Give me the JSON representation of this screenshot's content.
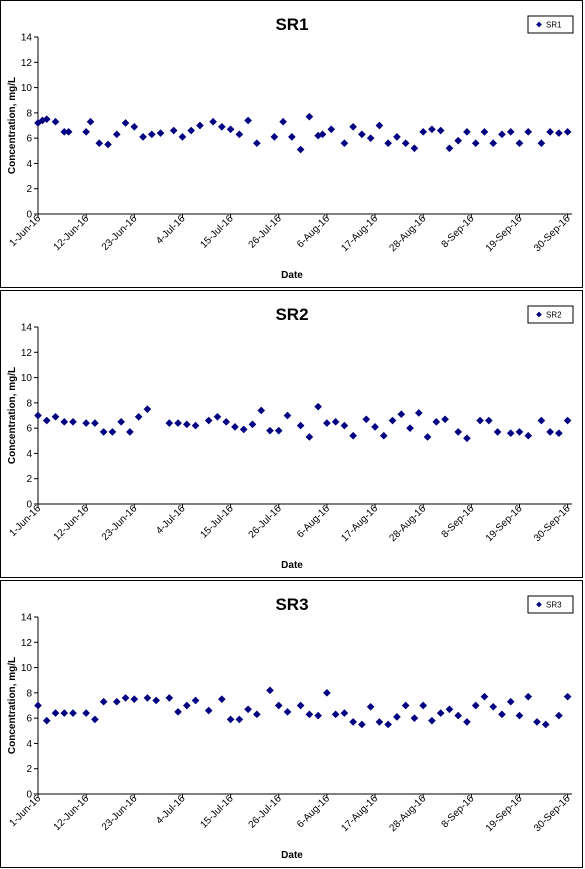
{
  "chart_data": [
    {
      "type": "scatter",
      "title": "SR1",
      "xlabel": "Date",
      "ylabel": "Concentration, mg/L",
      "ylim": [
        0,
        14
      ],
      "yticks": [
        0,
        2,
        4,
        6,
        8,
        10,
        12,
        14
      ],
      "xlim": [
        "2016-06-01",
        "2016-10-01"
      ],
      "xtick_labels": [
        "1-Jun-16",
        "12-Jun-16",
        "23-Jun-16",
        "4-Jul-16",
        "15-Jul-16",
        "26-Jul-16",
        "6-Aug-16",
        "17-Aug-16",
        "28-Aug-16",
        "8-Sep-16",
        "19-Sep-16",
        "30-Sep-16"
      ],
      "legend_position": "top-right",
      "color": "#000080",
      "grid": false,
      "series": [
        {
          "name": "SR1",
          "x": [
            "2016-06-01",
            "2016-06-02",
            "2016-06-03",
            "2016-06-05",
            "2016-06-07",
            "2016-06-08",
            "2016-06-12",
            "2016-06-13",
            "2016-06-15",
            "2016-06-17",
            "2016-06-19",
            "2016-06-21",
            "2016-06-23",
            "2016-06-25",
            "2016-06-27",
            "2016-06-29",
            "2016-07-02",
            "2016-07-04",
            "2016-07-06",
            "2016-07-08",
            "2016-07-11",
            "2016-07-13",
            "2016-07-15",
            "2016-07-17",
            "2016-07-19",
            "2016-07-21",
            "2016-07-25",
            "2016-07-27",
            "2016-07-29",
            "2016-07-31",
            "2016-08-02",
            "2016-08-04",
            "2016-08-05",
            "2016-08-07",
            "2016-08-10",
            "2016-08-12",
            "2016-08-14",
            "2016-08-16",
            "2016-08-18",
            "2016-08-20",
            "2016-08-22",
            "2016-08-24",
            "2016-08-26",
            "2016-08-28",
            "2016-08-30",
            "2016-09-01",
            "2016-09-03",
            "2016-09-05",
            "2016-09-07",
            "2016-09-09",
            "2016-09-11",
            "2016-09-13",
            "2016-09-15",
            "2016-09-17",
            "2016-09-19",
            "2016-09-21",
            "2016-09-24",
            "2016-09-26",
            "2016-09-28",
            "2016-09-30"
          ],
          "y": [
            7.2,
            7.4,
            7.5,
            7.3,
            6.5,
            6.5,
            6.5,
            7.3,
            5.6,
            5.5,
            6.3,
            7.2,
            6.9,
            6.1,
            6.3,
            6.4,
            6.6,
            6.1,
            6.6,
            7.0,
            7.3,
            6.9,
            6.7,
            6.3,
            7.4,
            5.6,
            6.1,
            7.3,
            6.1,
            5.1,
            7.7,
            6.2,
            6.3,
            6.7,
            5.6,
            6.9,
            6.3,
            6.0,
            7.0,
            5.6,
            6.1,
            5.6,
            5.2,
            6.5,
            6.7,
            6.6,
            5.2,
            5.8,
            6.5,
            5.6,
            6.5,
            5.6,
            6.3,
            6.5,
            5.6,
            6.5,
            5.6,
            6.5,
            6.4,
            6.5
          ]
        }
      ]
    },
    {
      "type": "scatter",
      "title": "SR2",
      "xlabel": "Date",
      "ylabel": "Concentration, mg/L",
      "ylim": [
        0,
        14
      ],
      "yticks": [
        0,
        2,
        4,
        6,
        8,
        10,
        12,
        14
      ],
      "xlim": [
        "2016-06-01",
        "2016-10-01"
      ],
      "xtick_labels": [
        "1-Jun-16",
        "12-Jun-16",
        "23-Jun-16",
        "4-Jul-16",
        "15-Jul-16",
        "26-Jul-16",
        "6-Aug-16",
        "17-Aug-16",
        "28-Aug-16",
        "8-Sep-16",
        "19-Sep-16",
        "30-Sep-16"
      ],
      "legend_position": "top-right",
      "color": "#000080",
      "grid": false,
      "series": [
        {
          "name": "SR2",
          "x": [
            "2016-06-01",
            "2016-06-03",
            "2016-06-05",
            "2016-06-07",
            "2016-06-09",
            "2016-06-12",
            "2016-06-14",
            "2016-06-16",
            "2016-06-18",
            "2016-06-20",
            "2016-06-22",
            "2016-06-24",
            "2016-06-26",
            "2016-07-01",
            "2016-07-03",
            "2016-07-05",
            "2016-07-07",
            "2016-07-10",
            "2016-07-12",
            "2016-07-14",
            "2016-07-16",
            "2016-07-18",
            "2016-07-20",
            "2016-07-22",
            "2016-07-24",
            "2016-07-26",
            "2016-07-28",
            "2016-07-31",
            "2016-08-02",
            "2016-08-04",
            "2016-08-06",
            "2016-08-08",
            "2016-08-10",
            "2016-08-12",
            "2016-08-15",
            "2016-08-17",
            "2016-08-19",
            "2016-08-21",
            "2016-08-23",
            "2016-08-25",
            "2016-08-27",
            "2016-08-29",
            "2016-08-31",
            "2016-09-02",
            "2016-09-05",
            "2016-09-07",
            "2016-09-10",
            "2016-09-12",
            "2016-09-14",
            "2016-09-17",
            "2016-09-19",
            "2016-09-21",
            "2016-09-24",
            "2016-09-26",
            "2016-09-28",
            "2016-09-30"
          ],
          "y": [
            7.0,
            6.6,
            6.9,
            6.5,
            6.5,
            6.4,
            6.4,
            5.7,
            5.7,
            6.5,
            5.7,
            6.9,
            7.5,
            6.4,
            6.4,
            6.3,
            6.2,
            6.6,
            6.9,
            6.5,
            6.1,
            5.9,
            6.3,
            7.4,
            5.8,
            5.8,
            7.0,
            6.2,
            5.3,
            7.7,
            6.4,
            6.5,
            6.2,
            5.4,
            6.7,
            6.1,
            5.4,
            6.6,
            7.1,
            6.0,
            7.2,
            5.3,
            6.5,
            6.7,
            5.7,
            5.2,
            6.6,
            6.6,
            5.7,
            5.6,
            5.7,
            5.4,
            6.6,
            5.7,
            5.6,
            6.6
          ]
        }
      ]
    },
    {
      "type": "scatter",
      "title": "SR3",
      "xlabel": "Date",
      "ylabel": "Concentration, mg/L",
      "ylim": [
        0,
        14
      ],
      "yticks": [
        0,
        2,
        4,
        6,
        8,
        10,
        12,
        14
      ],
      "xlim": [
        "2016-06-01",
        "2016-10-01"
      ],
      "xtick_labels": [
        "1-Jun-16",
        "12-Jun-16",
        "23-Jun-16",
        "4-Jul-16",
        "15-Jul-16",
        "26-Jul-16",
        "6-Aug-16",
        "17-Aug-16",
        "28-Aug-16",
        "8-Sep-16",
        "19-Sep-16",
        "30-Sep-16"
      ],
      "legend_position": "top-right",
      "color": "#000080",
      "grid": false,
      "series": [
        {
          "name": "SR3",
          "x": [
            "2016-06-01",
            "2016-06-03",
            "2016-06-05",
            "2016-06-07",
            "2016-06-09",
            "2016-06-12",
            "2016-06-14",
            "2016-06-16",
            "2016-06-19",
            "2016-06-21",
            "2016-06-23",
            "2016-06-26",
            "2016-06-28",
            "2016-07-01",
            "2016-07-03",
            "2016-07-05",
            "2016-07-07",
            "2016-07-10",
            "2016-07-13",
            "2016-07-15",
            "2016-07-17",
            "2016-07-19",
            "2016-07-21",
            "2016-07-24",
            "2016-07-26",
            "2016-07-28",
            "2016-07-31",
            "2016-08-02",
            "2016-08-04",
            "2016-08-06",
            "2016-08-08",
            "2016-08-10",
            "2016-08-12",
            "2016-08-14",
            "2016-08-16",
            "2016-08-18",
            "2016-08-20",
            "2016-08-22",
            "2016-08-24",
            "2016-08-26",
            "2016-08-28",
            "2016-08-30",
            "2016-09-01",
            "2016-09-03",
            "2016-09-05",
            "2016-09-07",
            "2016-09-09",
            "2016-09-11",
            "2016-09-13",
            "2016-09-15",
            "2016-09-17",
            "2016-09-19",
            "2016-09-21",
            "2016-09-23",
            "2016-09-25",
            "2016-09-28",
            "2016-09-30"
          ],
          "y": [
            7.0,
            5.8,
            6.4,
            6.4,
            6.4,
            6.4,
            5.9,
            7.3,
            7.3,
            7.6,
            7.5,
            7.6,
            7.4,
            7.6,
            6.5,
            7.0,
            7.4,
            6.6,
            7.5,
            5.9,
            5.9,
            6.7,
            6.3,
            8.2,
            7.0,
            6.5,
            7.0,
            6.3,
            6.2,
            8.0,
            6.3,
            6.4,
            5.7,
            5.5,
            6.9,
            5.7,
            5.5,
            6.1,
            7.0,
            6.0,
            7.0,
            5.8,
            6.4,
            6.7,
            6.2,
            5.7,
            7.0,
            7.7,
            6.9,
            6.3,
            7.3,
            6.2,
            7.7,
            5.7,
            5.5,
            6.2,
            7.7
          ]
        }
      ]
    }
  ]
}
